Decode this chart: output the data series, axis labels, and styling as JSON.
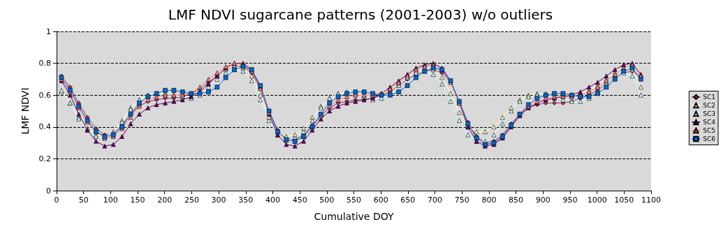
{
  "chart_data": {
    "type": "line",
    "title": "LMF NDVI sugarcane patterns (2001-2003) w/o outliers",
    "xlabel": "Cumulative DOY",
    "ylabel": "LMF NDVI",
    "x": [
      9,
      25,
      41,
      57,
      73,
      89,
      105,
      121,
      137,
      153,
      169,
      185,
      201,
      217,
      233,
      249,
      265,
      281,
      297,
      313,
      329,
      345,
      361,
      377,
      393,
      409,
      425,
      441,
      457,
      473,
      489,
      505,
      521,
      537,
      553,
      569,
      585,
      601,
      617,
      633,
      649,
      665,
      681,
      697,
      713,
      729,
      745,
      761,
      777,
      793,
      809,
      825,
      841,
      857,
      873,
      889,
      905,
      921,
      937,
      953,
      969,
      985,
      1001,
      1017,
      1033,
      1049,
      1065,
      1081
    ],
    "series": [
      {
        "name": "SC1",
        "color": "#993366",
        "marker": "diamond",
        "values": [
          0.72,
          0.65,
          0.55,
          0.46,
          0.39,
          0.35,
          0.36,
          0.41,
          0.48,
          0.53,
          0.56,
          0.57,
          0.58,
          0.58,
          0.59,
          0.61,
          0.64,
          0.68,
          0.72,
          0.76,
          0.78,
          0.78,
          0.74,
          0.64,
          0.5,
          0.38,
          0.33,
          0.32,
          0.35,
          0.41,
          0.47,
          0.52,
          0.55,
          0.56,
          0.57,
          0.57,
          0.58,
          0.6,
          0.62,
          0.66,
          0.7,
          0.73,
          0.75,
          0.76,
          0.74,
          0.68,
          0.56,
          0.43,
          0.34,
          0.3,
          0.31,
          0.35,
          0.42,
          0.48,
          0.52,
          0.54,
          0.55,
          0.55,
          0.55,
          0.56,
          0.58,
          0.6,
          0.63,
          0.67,
          0.71,
          0.74,
          0.75,
          0.71
        ]
      },
      {
        "name": "SC2",
        "color": "#ffffcc",
        "marker": "triangle",
        "values": [
          0.62,
          0.55,
          0.46,
          0.39,
          0.35,
          0.34,
          0.37,
          0.44,
          0.52,
          0.57,
          0.6,
          0.61,
          0.61,
          0.6,
          0.59,
          0.59,
          0.62,
          0.67,
          0.72,
          0.76,
          0.78,
          0.77,
          0.72,
          0.6,
          0.46,
          0.37,
          0.34,
          0.35,
          0.39,
          0.46,
          0.53,
          0.58,
          0.61,
          0.61,
          0.61,
          0.6,
          0.6,
          0.61,
          0.64,
          0.68,
          0.72,
          0.75,
          0.77,
          0.76,
          0.71,
          0.61,
          0.49,
          0.4,
          0.37,
          0.37,
          0.4,
          0.46,
          0.52,
          0.57,
          0.6,
          0.61,
          0.61,
          0.61,
          0.6,
          0.6,
          0.61,
          0.63,
          0.66,
          0.7,
          0.74,
          0.77,
          0.76,
          0.65
        ]
      },
      {
        "name": "SC3",
        "color": "#ccffff",
        "marker": "triangle",
        "values": [
          0.63,
          0.55,
          0.45,
          0.38,
          0.34,
          0.33,
          0.36,
          0.43,
          0.51,
          0.57,
          0.6,
          0.61,
          0.61,
          0.6,
          0.59,
          0.58,
          0.6,
          0.65,
          0.7,
          0.74,
          0.76,
          0.75,
          0.69,
          0.57,
          0.44,
          0.35,
          0.32,
          0.33,
          0.37,
          0.44,
          0.52,
          0.58,
          0.61,
          0.62,
          0.61,
          0.59,
          0.57,
          0.58,
          0.61,
          0.66,
          0.71,
          0.74,
          0.75,
          0.73,
          0.67,
          0.56,
          0.44,
          0.35,
          0.31,
          0.31,
          0.35,
          0.42,
          0.5,
          0.56,
          0.59,
          0.6,
          0.6,
          0.59,
          0.57,
          0.56,
          0.56,
          0.58,
          0.62,
          0.67,
          0.71,
          0.74,
          0.72,
          0.6
        ]
      },
      {
        "name": "SC4",
        "color": "#660066",
        "marker": "triangle",
        "values": [
          0.69,
          0.6,
          0.48,
          0.38,
          0.31,
          0.28,
          0.29,
          0.34,
          0.42,
          0.48,
          0.52,
          0.54,
          0.55,
          0.56,
          0.57,
          0.59,
          0.62,
          0.67,
          0.72,
          0.77,
          0.8,
          0.8,
          0.76,
          0.65,
          0.48,
          0.35,
          0.29,
          0.28,
          0.31,
          0.38,
          0.45,
          0.5,
          0.53,
          0.55,
          0.56,
          0.57,
          0.58,
          0.61,
          0.65,
          0.69,
          0.73,
          0.77,
          0.79,
          0.8,
          0.77,
          0.69,
          0.55,
          0.4,
          0.31,
          0.28,
          0.29,
          0.33,
          0.4,
          0.47,
          0.52,
          0.55,
          0.57,
          0.58,
          0.59,
          0.6,
          0.62,
          0.65,
          0.68,
          0.72,
          0.76,
          0.79,
          0.8,
          0.73
        ]
      },
      {
        "name": "SC5",
        "color": "#ff8080",
        "marker": "triangle",
        "values": [
          0.7,
          0.62,
          0.52,
          0.43,
          0.37,
          0.33,
          0.34,
          0.39,
          0.46,
          0.53,
          0.57,
          0.59,
          0.6,
          0.6,
          0.6,
          0.61,
          0.65,
          0.7,
          0.74,
          0.78,
          0.8,
          0.79,
          0.75,
          0.64,
          0.49,
          0.37,
          0.32,
          0.31,
          0.34,
          0.4,
          0.47,
          0.53,
          0.57,
          0.59,
          0.6,
          0.6,
          0.6,
          0.61,
          0.64,
          0.68,
          0.72,
          0.76,
          0.78,
          0.79,
          0.76,
          0.68,
          0.55,
          0.42,
          0.33,
          0.29,
          0.3,
          0.34,
          0.41,
          0.48,
          0.53,
          0.56,
          0.58,
          0.59,
          0.59,
          0.59,
          0.6,
          0.62,
          0.65,
          0.69,
          0.73,
          0.77,
          0.79,
          0.72
        ]
      },
      {
        "name": "SC6",
        "color": "#0066cc",
        "marker": "square",
        "values": [
          0.71,
          0.63,
          0.53,
          0.44,
          0.37,
          0.34,
          0.35,
          0.4,
          0.48,
          0.55,
          0.59,
          0.61,
          0.63,
          0.63,
          0.62,
          0.61,
          0.61,
          0.62,
          0.65,
          0.71,
          0.76,
          0.78,
          0.76,
          0.66,
          0.5,
          0.37,
          0.32,
          0.31,
          0.34,
          0.4,
          0.48,
          0.55,
          0.59,
          0.61,
          0.62,
          0.62,
          0.61,
          0.6,
          0.6,
          0.62,
          0.66,
          0.71,
          0.75,
          0.77,
          0.76,
          0.69,
          0.56,
          0.42,
          0.33,
          0.29,
          0.3,
          0.34,
          0.41,
          0.48,
          0.54,
          0.58,
          0.6,
          0.61,
          0.61,
          0.6,
          0.59,
          0.59,
          0.61,
          0.65,
          0.7,
          0.75,
          0.77,
          0.7
        ]
      }
    ],
    "xlim": [
      0,
      1100
    ],
    "xticks": [
      0,
      50,
      100,
      150,
      200,
      250,
      300,
      350,
      400,
      450,
      500,
      550,
      600,
      650,
      700,
      750,
      800,
      850,
      900,
      950,
      1000,
      1050,
      1100
    ],
    "ylim": [
      0,
      1
    ],
    "yticks": [
      0,
      0.2,
      0.4,
      0.6,
      0.8,
      1
    ],
    "grid": "y",
    "legend": "right",
    "line_style": "solid"
  }
}
